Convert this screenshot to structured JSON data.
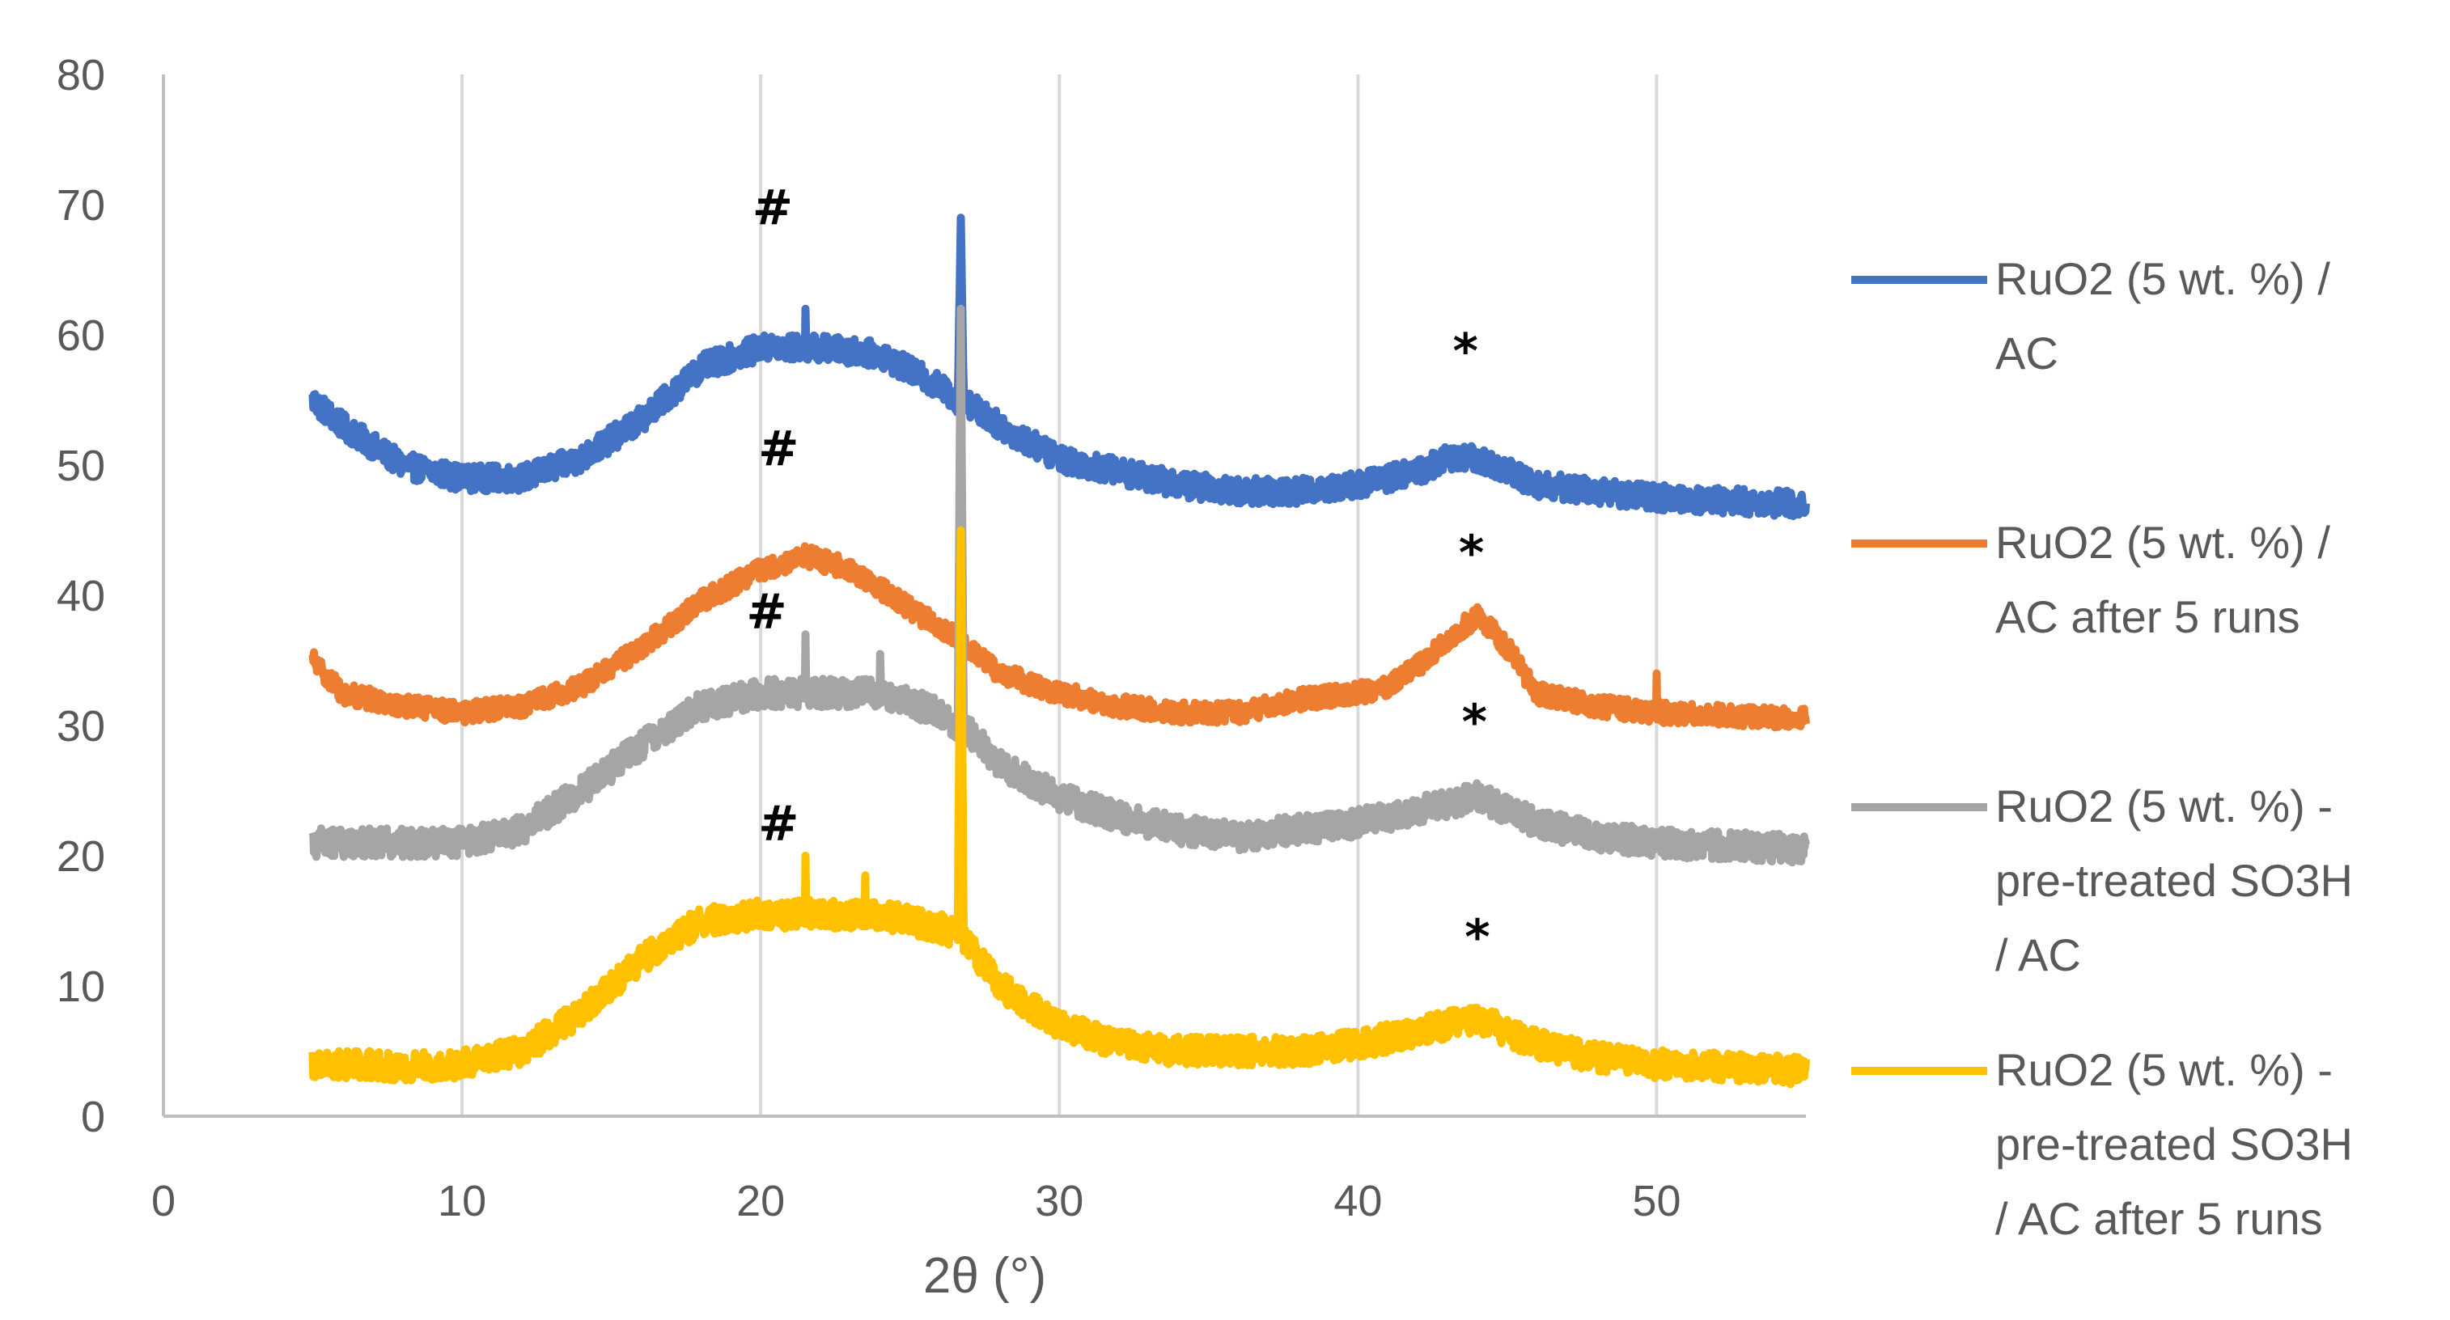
{
  "chart_data": {
    "type": "line",
    "title": "",
    "xlabel": "2θ (°)",
    "ylabel": "",
    "xlim": [
      0,
      55
    ],
    "ylim": [
      0,
      80
    ],
    "xticks": [
      0,
      10,
      20,
      30,
      40,
      50
    ],
    "yticks": [
      0,
      10,
      20,
      30,
      40,
      50,
      60,
      70,
      80
    ],
    "grid": "vertical",
    "legend_position": "right",
    "series": [
      {
        "name": "RuO2  (5 wt. %) / AC",
        "legend_lines": [
          "RuO2  (5 wt. %) /",
          "AC"
        ],
        "color": "#4472C4",
        "noise": 1.0,
        "points": [
          [
            5,
            55
          ],
          [
            6,
            53
          ],
          [
            8,
            50
          ],
          [
            10,
            49
          ],
          [
            12,
            49
          ],
          [
            14,
            50.5
          ],
          [
            16,
            53.5
          ],
          [
            18,
            57.5
          ],
          [
            20,
            59
          ],
          [
            22,
            59
          ],
          [
            24,
            58.5
          ],
          [
            26,
            56
          ],
          [
            26.6,
            55
          ],
          [
            26.7,
            69
          ],
          [
            26.8,
            55
          ],
          [
            28,
            53
          ],
          [
            30,
            50.5
          ],
          [
            32,
            49.5
          ],
          [
            34,
            48.5
          ],
          [
            36,
            48
          ],
          [
            38,
            48
          ],
          [
            40,
            48.5
          ],
          [
            42,
            49.5
          ],
          [
            43,
            50.5
          ],
          [
            44,
            50.5
          ],
          [
            46,
            48.5
          ],
          [
            48,
            48
          ],
          [
            50,
            47.5
          ],
          [
            52,
            47.3
          ],
          [
            55,
            47
          ]
        ],
        "spikes": [
          [
            21.5,
            62
          ]
        ]
      },
      {
        "name": "RuO2  (5 wt. %) / AC after 5 runs",
        "legend_lines": [
          "RuO2  (5 wt. %) /",
          "AC after 5 runs"
        ],
        "color": "#ED7D31",
        "noise": 0.8,
        "points": [
          [
            5,
            35
          ],
          [
            6,
            32.5
          ],
          [
            8,
            31.5
          ],
          [
            10,
            31
          ],
          [
            12,
            31.5
          ],
          [
            14,
            33
          ],
          [
            16,
            36
          ],
          [
            18,
            39.5
          ],
          [
            20,
            42
          ],
          [
            21.5,
            43
          ],
          [
            23,
            42
          ],
          [
            25,
            39
          ],
          [
            27,
            36
          ],
          [
            28,
            34
          ],
          [
            30,
            32.5
          ],
          [
            32,
            31.5
          ],
          [
            34,
            31
          ],
          [
            36,
            31
          ],
          [
            38,
            32
          ],
          [
            40,
            32.5
          ],
          [
            41,
            33
          ],
          [
            42,
            34.5
          ],
          [
            43,
            36.5
          ],
          [
            44,
            38.5
          ],
          [
            45,
            36
          ],
          [
            46,
            32.5
          ],
          [
            48,
            31.5
          ],
          [
            50,
            31
          ],
          [
            52,
            30.8
          ],
          [
            55,
            30.5
          ]
        ],
        "spikes": [
          [
            50,
            34
          ]
        ]
      },
      {
        "name": "RuO2  (5 wt. %) - pre-treated SO3H / AC",
        "legend_lines": [
          "RuO2  (5 wt. %) -",
          "pre-treated SO3H",
          "/ AC"
        ],
        "color": "#A5A5A5",
        "noise": 1.1,
        "points": [
          [
            5,
            21
          ],
          [
            6,
            21
          ],
          [
            8,
            21
          ],
          [
            10,
            21
          ],
          [
            12,
            22
          ],
          [
            14,
            25
          ],
          [
            16,
            28.5
          ],
          [
            18,
            31.5
          ],
          [
            20,
            32.5
          ],
          [
            22,
            32.5
          ],
          [
            24,
            32.5
          ],
          [
            26,
            31
          ],
          [
            26.6,
            30
          ],
          [
            26.7,
            62
          ],
          [
            26.8,
            30
          ],
          [
            28,
            27
          ],
          [
            30,
            24.5
          ],
          [
            32,
            23
          ],
          [
            34,
            22
          ],
          [
            36,
            21.5
          ],
          [
            38,
            22
          ],
          [
            40,
            22.5
          ],
          [
            42,
            23.5
          ],
          [
            44,
            24.5
          ],
          [
            46,
            22.5
          ],
          [
            48,
            21.5
          ],
          [
            50,
            21
          ],
          [
            52,
            20.8
          ],
          [
            55,
            20.5
          ]
        ],
        "spikes": [
          [
            21.5,
            37
          ],
          [
            24,
            35.5
          ]
        ]
      },
      {
        "name": "RuO2  (5 wt. %) - pre-treated SO3H / AC after 5 runs",
        "legend_lines": [
          "RuO2  (5 wt. %) -",
          "pre-treated SO3H",
          "/ AC after 5 runs"
        ],
        "color": "#FFC000",
        "noise": 1.1,
        "points": [
          [
            5,
            4
          ],
          [
            6,
            4
          ],
          [
            8,
            3.8
          ],
          [
            10,
            4
          ],
          [
            12,
            5
          ],
          [
            14,
            8
          ],
          [
            16,
            12
          ],
          [
            18,
            15
          ],
          [
            20,
            15.5
          ],
          [
            22,
            15.5
          ],
          [
            24,
            15.5
          ],
          [
            26,
            14.5
          ],
          [
            26.6,
            14
          ],
          [
            26.7,
            45
          ],
          [
            26.8,
            13.5
          ],
          [
            28,
            10
          ],
          [
            30,
            7
          ],
          [
            32,
            5.5
          ],
          [
            34,
            5
          ],
          [
            36,
            5
          ],
          [
            38,
            5
          ],
          [
            40,
            5.5
          ],
          [
            42,
            6.5
          ],
          [
            44,
            7.5
          ],
          [
            46,
            5.5
          ],
          [
            48,
            4.5
          ],
          [
            50,
            4
          ],
          [
            52,
            3.8
          ],
          [
            55,
            3.5
          ]
        ],
        "spikes": [
          [
            21.5,
            20
          ],
          [
            23.5,
            18.5
          ]
        ]
      }
    ],
    "annotations": [
      {
        "text": "#",
        "x": 20.4,
        "y": 68.5
      },
      {
        "text": "#",
        "x": 20.6,
        "y": 50
      },
      {
        "text": "#",
        "x": 20.2,
        "y": 37.5
      },
      {
        "text": "#",
        "x": 20.6,
        "y": 21.2
      },
      {
        "text": "*",
        "x": 43.6,
        "y": 57.5
      },
      {
        "text": "*",
        "x": 43.8,
        "y": 42
      },
      {
        "text": "*",
        "x": 43.9,
        "y": 29
      },
      {
        "text": "*",
        "x": 44.0,
        "y": 12.5
      }
    ]
  }
}
